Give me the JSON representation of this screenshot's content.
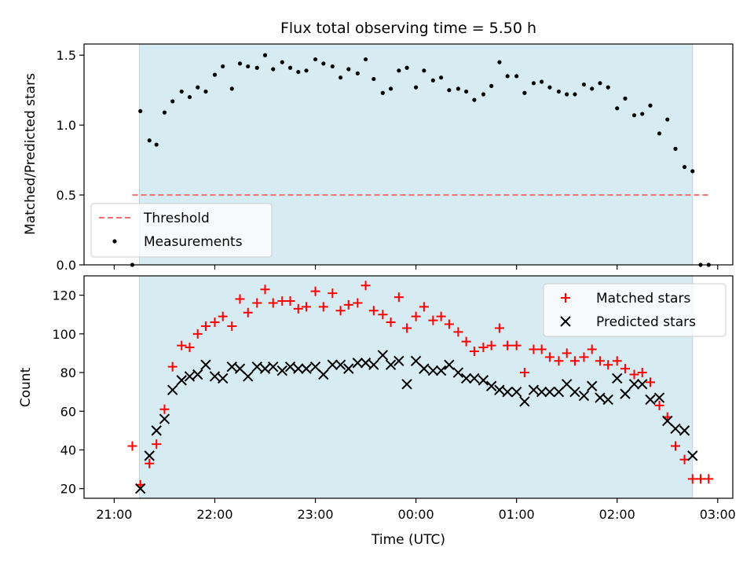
{
  "title": "Flux total observing time = 5.50 h",
  "chart_data": [
    {
      "type": "scatter",
      "ylabel": "Matched/Predicted stars",
      "xlim": [
        -0.3,
        6.15
      ],
      "ylim": [
        0,
        1.58
      ],
      "xticks": [
        0,
        1,
        2,
        3,
        4,
        5,
        6
      ],
      "yticks": [
        0,
        0.5,
        1.0,
        1.5
      ],
      "ytick_labels": [
        "0.0",
        "0.5",
        "1.0",
        "1.5"
      ],
      "shaded_span": [
        0.25,
        5.75
      ],
      "threshold": {
        "value": 0.5,
        "x_range": [
          0.18,
          5.92
        ]
      },
      "legend": {
        "position": "lower-left",
        "entries": [
          "Threshold",
          "Measurements"
        ]
      },
      "series": [
        {
          "name": "Measurements",
          "color": "#000000",
          "marker": "dot",
          "x": [
            0.18,
            0.26,
            0.35,
            0.42,
            0.5,
            0.58,
            0.67,
            0.75,
            0.83,
            0.91,
            1.0,
            1.08,
            1.17,
            1.25,
            1.33,
            1.42,
            1.5,
            1.58,
            1.67,
            1.75,
            1.83,
            1.91,
            2.0,
            2.08,
            2.17,
            2.25,
            2.33,
            2.42,
            2.5,
            2.58,
            2.67,
            2.75,
            2.83,
            2.91,
            3.0,
            3.08,
            3.17,
            3.25,
            3.33,
            3.42,
            3.5,
            3.58,
            3.67,
            3.75,
            3.83,
            3.91,
            4.0,
            4.08,
            4.17,
            4.25,
            4.33,
            4.42,
            4.5,
            4.58,
            4.67,
            4.75,
            4.83,
            4.91,
            5.0,
            5.08,
            5.17,
            5.25,
            5.33,
            5.42,
            5.5,
            5.58,
            5.67,
            5.75,
            5.83,
            5.91
          ],
          "y": [
            0.0,
            1.1,
            0.89,
            0.86,
            1.09,
            1.17,
            1.24,
            1.2,
            1.27,
            1.24,
            1.36,
            1.42,
            1.26,
            1.44,
            1.42,
            1.41,
            1.5,
            1.4,
            1.45,
            1.41,
            1.38,
            1.39,
            1.47,
            1.44,
            1.42,
            1.34,
            1.4,
            1.37,
            1.47,
            1.33,
            1.23,
            1.26,
            1.39,
            1.41,
            1.27,
            1.39,
            1.32,
            1.34,
            1.25,
            1.26,
            1.24,
            1.18,
            1.22,
            1.28,
            1.45,
            1.35,
            1.35,
            1.23,
            1.3,
            1.31,
            1.27,
            1.24,
            1.22,
            1.22,
            1.29,
            1.26,
            1.3,
            1.27,
            1.12,
            1.19,
            1.07,
            1.08,
            1.14,
            0.94,
            1.04,
            0.83,
            0.7,
            0.67,
            0.0,
            0.0
          ]
        }
      ]
    },
    {
      "type": "scatter",
      "xlabel": "Time (UTC)",
      "ylabel": "Count",
      "xlim": [
        -0.3,
        6.15
      ],
      "ylim": [
        15,
        130
      ],
      "xticks": [
        0,
        1,
        2,
        3,
        4,
        5,
        6
      ],
      "xtick_labels": [
        "21:00",
        "22:00",
        "23:00",
        "00:00",
        "01:00",
        "02:00",
        "03:00"
      ],
      "yticks": [
        20,
        40,
        60,
        80,
        100,
        120
      ],
      "shaded_span": [
        0.25,
        5.75
      ],
      "legend": {
        "position": "top-right",
        "entries": [
          "Matched stars",
          "Predicted stars"
        ]
      },
      "series": [
        {
          "name": "Matched stars",
          "color": "#ff0000",
          "marker": "plus",
          "x": [
            0.18,
            0.26,
            0.35,
            0.42,
            0.5,
            0.58,
            0.67,
            0.75,
            0.83,
            0.91,
            1.0,
            1.08,
            1.17,
            1.25,
            1.33,
            1.42,
            1.5,
            1.58,
            1.67,
            1.75,
            1.83,
            1.91,
            2.0,
            2.08,
            2.17,
            2.25,
            2.33,
            2.42,
            2.5,
            2.58,
            2.67,
            2.75,
            2.83,
            2.91,
            3.0,
            3.08,
            3.17,
            3.25,
            3.33,
            3.42,
            3.5,
            3.58,
            3.67,
            3.75,
            3.83,
            3.91,
            4.0,
            4.08,
            4.17,
            4.25,
            4.33,
            4.42,
            4.5,
            4.58,
            4.67,
            4.75,
            4.83,
            4.91,
            5.0,
            5.08,
            5.17,
            5.25,
            5.33,
            5.42,
            5.5,
            5.58,
            5.67,
            5.75,
            5.83,
            5.91
          ],
          "y": [
            42,
            22,
            33,
            43,
            61,
            83,
            94,
            93,
            100,
            104,
            106,
            109,
            104,
            118,
            111,
            116,
            123,
            116,
            117,
            117,
            113,
            114,
            122,
            114,
            121,
            112,
            115,
            116,
            125,
            112,
            110,
            106,
            119,
            103,
            109,
            114,
            107,
            109,
            105,
            101,
            96,
            91,
            93,
            94,
            103,
            94,
            94,
            80,
            92,
            92,
            88,
            86,
            90,
            86,
            88,
            92,
            86,
            84,
            86,
            82,
            79,
            80,
            75,
            63,
            57,
            42,
            35,
            25,
            25,
            25
          ]
        },
        {
          "name": "Predicted stars",
          "color": "#000000",
          "marker": "x",
          "x": [
            0.26,
            0.35,
            0.42,
            0.5,
            0.58,
            0.67,
            0.75,
            0.83,
            0.91,
            1.0,
            1.08,
            1.17,
            1.25,
            1.33,
            1.42,
            1.5,
            1.58,
            1.67,
            1.75,
            1.83,
            1.91,
            2.0,
            2.08,
            2.17,
            2.25,
            2.33,
            2.42,
            2.5,
            2.58,
            2.67,
            2.75,
            2.83,
            2.91,
            3.0,
            3.08,
            3.17,
            3.25,
            3.33,
            3.42,
            3.5,
            3.58,
            3.67,
            3.75,
            3.83,
            3.91,
            4.0,
            4.08,
            4.17,
            4.25,
            4.33,
            4.42,
            4.5,
            4.58,
            4.67,
            4.75,
            4.83,
            4.91,
            5.0,
            5.08,
            5.17,
            5.25,
            5.33,
            5.42,
            5.5,
            5.58,
            5.67,
            5.75
          ],
          "y": [
            20,
            37,
            50,
            56,
            71,
            76,
            78,
            79,
            84,
            78,
            77,
            83,
            82,
            78,
            83,
            82,
            83,
            81,
            83,
            82,
            82,
            83,
            79,
            84,
            84,
            82,
            85,
            85,
            84,
            89,
            84,
            86,
            74,
            86,
            82,
            81,
            81,
            84,
            80,
            77,
            77,
            76,
            73,
            71,
            70,
            70,
            65,
            71,
            70,
            70,
            70,
            74,
            70,
            68,
            73,
            67,
            66,
            77,
            69,
            74,
            74,
            66,
            67,
            55,
            51,
            50,
            37
          ]
        }
      ]
    }
  ]
}
